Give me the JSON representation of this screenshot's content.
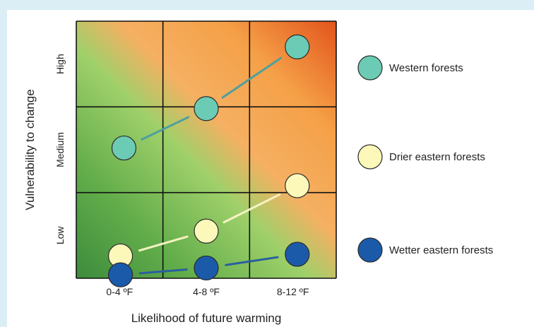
{
  "chart_data": {
    "type": "scatter",
    "title": "",
    "xlabel": "Likelihood of future warming",
    "ylabel": "Vulnerability to change",
    "x_categories": [
      "0-4 ºF",
      "4-8 ºF",
      "8-12 ºF"
    ],
    "y_categories": [
      "Low",
      "Medium",
      "High"
    ],
    "xlim": [
      0,
      3
    ],
    "ylim": [
      0,
      3
    ],
    "grid": true,
    "legend_placement": "right",
    "background": "diagonal gradient from green (low-left) to orange-red (high-right)",
    "series": [
      {
        "name": "Western forests",
        "color": "#6ccbb4",
        "line_color": "#4f9fa0",
        "points": [
          {
            "x": 0.55,
            "y": 1.52
          },
          {
            "x": 1.5,
            "y": 1.98
          },
          {
            "x": 2.55,
            "y": 2.7
          }
        ]
      },
      {
        "name": "Drier eastern forests",
        "color": "#fbf8b9",
        "line_color": "#f5f2c4",
        "points": [
          {
            "x": 0.51,
            "y": 0.26
          },
          {
            "x": 1.5,
            "y": 0.55
          },
          {
            "x": 2.55,
            "y": 1.08
          }
        ]
      },
      {
        "name": "Wetter eastern forests",
        "color": "#1b5aa9",
        "line_color": "#2a5f9e",
        "points": [
          {
            "x": 0.51,
            "y": 0.04
          },
          {
            "x": 1.5,
            "y": 0.12
          },
          {
            "x": 2.55,
            "y": 0.28
          }
        ]
      }
    ]
  }
}
